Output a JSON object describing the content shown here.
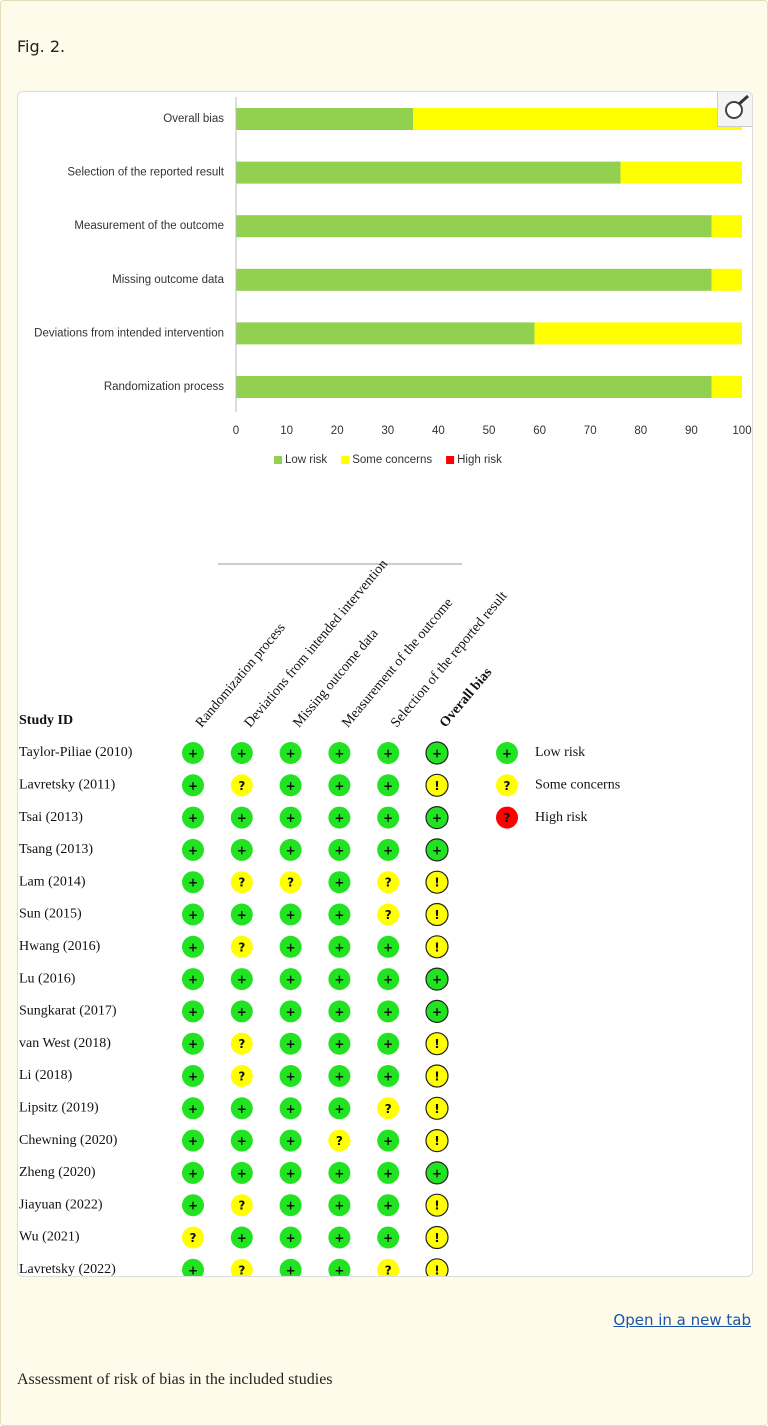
{
  "figure_label": "Fig. 2.",
  "chart_data": {
    "type": "bar",
    "orientation": "horizontal",
    "stacked": true,
    "categories": [
      "Overall bias",
      "Selection of the reported result",
      "Measurement of the outcome",
      "Missing outcome data",
      "Deviations from intended intervention",
      "Randomization process"
    ],
    "series": [
      {
        "name": "Low risk",
        "color": "#92d050",
        "values": [
          35,
          76,
          94,
          94,
          59,
          94
        ]
      },
      {
        "name": "Some concerns",
        "color": "#ffff00",
        "values": [
          65,
          24,
          6,
          6,
          41,
          6
        ]
      },
      {
        "name": "High risk",
        "color": "#ff0000",
        "values": [
          0,
          0,
          0,
          0,
          0,
          0
        ]
      }
    ],
    "xlim": [
      0,
      100
    ],
    "xticks": [
      0,
      10,
      20,
      30,
      40,
      50,
      60,
      70,
      80,
      90,
      100
    ],
    "legend": "bottom"
  },
  "traffic_light": {
    "header": "Study ID",
    "columns": [
      "Randomization process",
      "Deviations from intended intervention",
      "Missing outcome data",
      "Measurement of the outcome",
      "Selection of the reported result",
      "Overall bias"
    ],
    "rows": [
      {
        "study": "Taylor-Piliae (2010)",
        "judgements": [
          "+",
          "+",
          "+",
          "+",
          "+",
          "+"
        ]
      },
      {
        "study": "Lavretsky (2011)",
        "judgements": [
          "+",
          "?",
          "+",
          "+",
          "+",
          "!"
        ]
      },
      {
        "study": "Tsai (2013)",
        "judgements": [
          "+",
          "+",
          "+",
          "+",
          "+",
          "+"
        ]
      },
      {
        "study": "Tsang (2013)",
        "judgements": [
          "+",
          "+",
          "+",
          "+",
          "+",
          "+"
        ]
      },
      {
        "study": "Lam (2014)",
        "judgements": [
          "+",
          "?",
          "?",
          "+",
          "?",
          "!"
        ]
      },
      {
        "study": "Sun (2015)",
        "judgements": [
          "+",
          "+",
          "+",
          "+",
          "?",
          "!"
        ]
      },
      {
        "study": "Hwang (2016)",
        "judgements": [
          "+",
          "?",
          "+",
          "+",
          "+",
          "!"
        ]
      },
      {
        "study": "Lu (2016)",
        "judgements": [
          "+",
          "+",
          "+",
          "+",
          "+",
          "+"
        ]
      },
      {
        "study": "Sungkarat (2017)",
        "judgements": [
          "+",
          "+",
          "+",
          "+",
          "+",
          "+"
        ]
      },
      {
        "study": "van West (2018)",
        "judgements": [
          "+",
          "?",
          "+",
          "+",
          "+",
          "!"
        ]
      },
      {
        "study": "Li (2018)",
        "judgements": [
          "+",
          "?",
          "+",
          "+",
          "+",
          "!"
        ]
      },
      {
        "study": "Lipsitz (2019)",
        "judgements": [
          "+",
          "+",
          "+",
          "+",
          "?",
          "!"
        ]
      },
      {
        "study": "Chewning (2020)",
        "judgements": [
          "+",
          "+",
          "+",
          "?",
          "+",
          "!"
        ]
      },
      {
        "study": "Zheng (2020)",
        "judgements": [
          "+",
          "+",
          "+",
          "+",
          "+",
          "+"
        ]
      },
      {
        "study": "Jiayuan (2022)",
        "judgements": [
          "+",
          "?",
          "+",
          "+",
          "+",
          "!"
        ]
      },
      {
        "study": "Wu (2021)",
        "judgements": [
          "?",
          "+",
          "+",
          "+",
          "+",
          "!"
        ]
      },
      {
        "study": "Lavretsky (2022)",
        "judgements": [
          "+",
          "?",
          "+",
          "+",
          "?",
          "!"
        ]
      }
    ],
    "symbol_colors": {
      "+": "#22e322",
      "?": "#ffff00",
      "!": "#ffff00"
    },
    "legend": [
      {
        "symbol": "+",
        "label": "Low risk",
        "color": "#22e322"
      },
      {
        "symbol": "?",
        "label": "Some concerns",
        "color": "#ffff00"
      },
      {
        "symbol": "?",
        "label": "High risk",
        "color": "#ff0000"
      }
    ]
  },
  "link": "Open in a new tab",
  "caption": "Assessment of risk of bias in the included studies"
}
